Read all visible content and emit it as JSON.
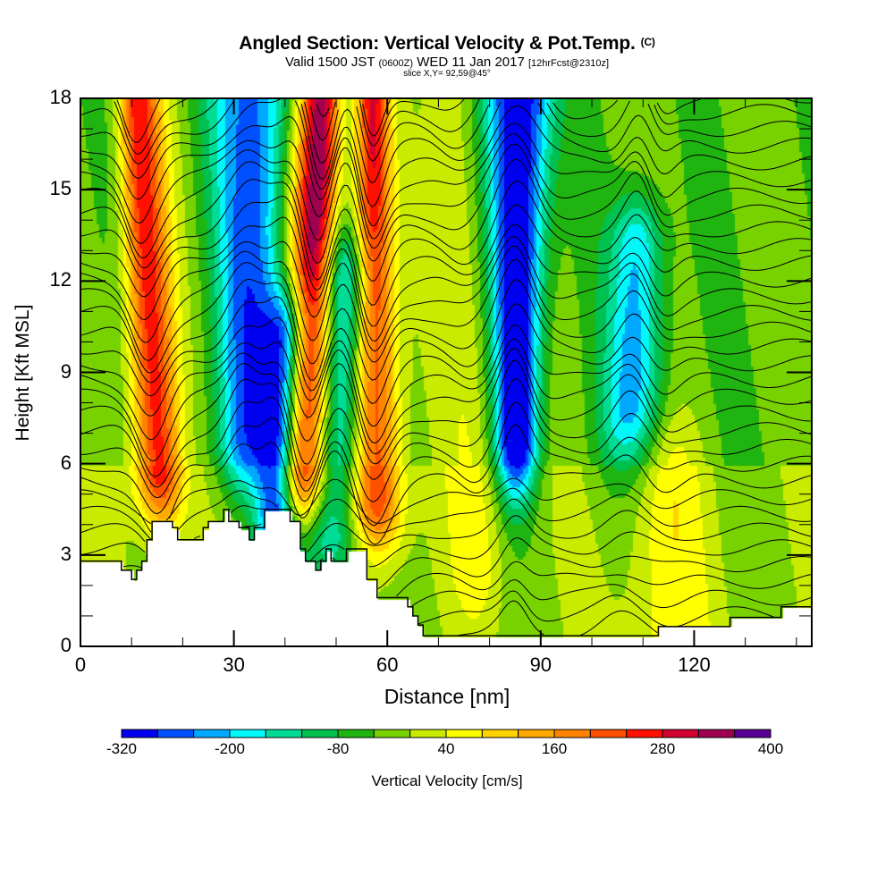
{
  "header": {
    "title": "Angled Section: Vertical Velocity & Pot.Temp.",
    "title_suffix": "(C)",
    "valid_prefix": "Valid 1500 JST",
    "valid_utc": "(0600Z)",
    "valid_date": "WED 11 Jan 2017",
    "forecast": "[12hrFcst@2310z]",
    "slice": "slice X,Y= 92,59@45°"
  },
  "chart_data": {
    "type": "heatmap",
    "title": "Angled Section: Vertical Velocity & Pot.Temp.",
    "xlabel": "Distance [nm]",
    "ylabel": "Height [Kft MSL]",
    "xlim": [
      0,
      143
    ],
    "ylim": [
      0,
      18
    ],
    "xticks": [
      "0",
      "30",
      "60",
      "90",
      "120"
    ],
    "xtick_values": [
      0,
      30,
      60,
      90,
      120
    ],
    "xminor_step": 10,
    "yticks": [
      "0",
      "3",
      "6",
      "9",
      "12",
      "15",
      "18"
    ],
    "ytick_values": [
      0,
      3,
      6,
      9,
      12,
      15,
      18
    ],
    "yminor_step": 1,
    "field": "Vertical Velocity",
    "contours": "Potential Temperature (C)",
    "colorbar": {
      "label": "Vertical Velocity [cm/s]",
      "min": -320,
      "max": 400,
      "step": 40,
      "tick_labels": [
        "-320",
        "-200",
        "-80",
        "40",
        "160",
        "280",
        "400"
      ],
      "tick_values": [
        -320,
        -200,
        -80,
        40,
        160,
        280,
        400
      ],
      "colors": [
        "#0000f0",
        "#0050ff",
        "#00a8ff",
        "#00f8f8",
        "#00dc96",
        "#00c050",
        "#20b410",
        "#78d200",
        "#c8eb00",
        "#ffff00",
        "#ffd200",
        "#ffaa00",
        "#ff8200",
        "#ff5000",
        "#ff1000",
        "#d20030",
        "#a00050",
        "#5a0096"
      ]
    },
    "updraft_bands": [
      {
        "distance_nm": 14,
        "peak_cms": 300,
        "top_kft": 18,
        "bottom_kft": 6
      },
      {
        "distance_nm": 44,
        "peak_cms": 390,
        "top_kft": 18,
        "bottom_kft": 6
      },
      {
        "distance_nm": 57,
        "peak_cms": 320,
        "top_kft": 18,
        "bottom_kft": 5
      },
      {
        "distance_nm": 76,
        "peak_cms": 70,
        "top_kft": 18,
        "bottom_kft": 3
      },
      {
        "distance_nm": 114,
        "peak_cms": 80,
        "top_kft": 6,
        "bottom_kft": 0
      }
    ],
    "downdraft_bands": [
      {
        "distance_nm": 32,
        "peak_cms": -220,
        "top_kft": 18,
        "bottom_kft": 7
      },
      {
        "distance_nm": 40,
        "peak_cms": -300,
        "top_kft": 10,
        "bottom_kft": 4
      },
      {
        "distance_nm": 51,
        "peak_cms": -200,
        "top_kft": 12,
        "bottom_kft": 4
      },
      {
        "distance_nm": 85,
        "peak_cms": -330,
        "top_kft": 18,
        "bottom_kft": 7
      },
      {
        "distance_nm": 108,
        "peak_cms": -180,
        "top_kft": 13,
        "bottom_kft": 8
      }
    ],
    "terrain_kft": {
      "distance_nm": [
        0,
        2,
        8,
        10,
        11,
        12,
        13,
        14,
        18,
        19,
        24,
        25,
        28,
        29,
        31,
        33,
        34,
        36,
        37,
        40,
        41,
        43,
        44,
        46,
        47,
        48,
        49,
        52,
        56,
        58,
        63,
        64,
        65,
        66,
        67,
        113,
        127,
        137,
        143
      ],
      "height": [
        2.8,
        2.8,
        2.5,
        2.2,
        2.5,
        2.8,
        3.5,
        4.1,
        3.9,
        3.5,
        3.9,
        4.1,
        4.5,
        4.1,
        3.9,
        3.5,
        3.9,
        4.5,
        4.5,
        4.5,
        4.1,
        3.2,
        2.8,
        2.5,
        2.8,
        3.2,
        2.8,
        3.2,
        2.2,
        1.6,
        1.6,
        1.3,
        1.0,
        0.7,
        0.35,
        0.65,
        0.95,
        1.3,
        1.3
      ]
    }
  }
}
